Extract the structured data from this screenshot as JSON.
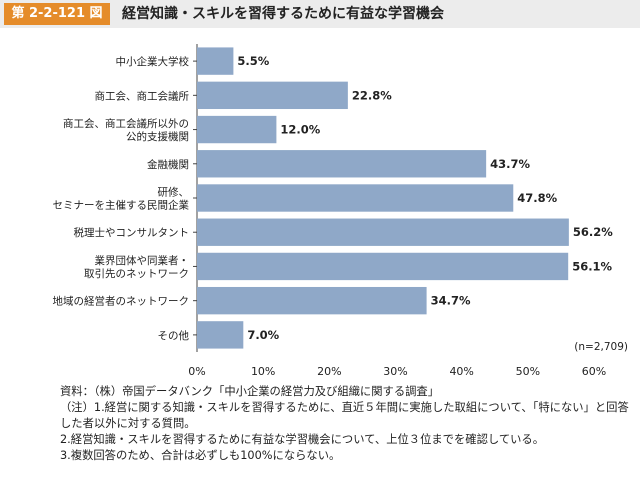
{
  "header": {
    "figure_number": "第 2-2-121 図",
    "title": "経営知識・スキルを習得するために有益な学習機会"
  },
  "chart_data": {
    "type": "bar",
    "orientation": "horizontal",
    "categories": [
      [
        "中小企業大学校"
      ],
      [
        "商工会、商工会議所"
      ],
      [
        "商工会、商工会議所以外の",
        "公的支援機関"
      ],
      [
        "金融機関"
      ],
      [
        "研修、",
        "セミナーを主催する民間企業"
      ],
      [
        "税理士やコンサルタント"
      ],
      [
        "業界団体や同業者・",
        "取引先のネットワーク"
      ],
      [
        "地域の経営者のネットワーク"
      ],
      [
        "その他"
      ]
    ],
    "values": [
      5.5,
      22.8,
      12.0,
      43.7,
      47.8,
      56.2,
      56.1,
      34.7,
      7.0
    ],
    "value_labels": [
      "5.5%",
      "22.8%",
      "12.0%",
      "43.7%",
      "47.8%",
      "56.2%",
      "56.1%",
      "34.7%",
      "7.0%"
    ],
    "xlim": [
      0,
      60
    ],
    "x_ticks": [
      "0%",
      "10%",
      "20%",
      "30%",
      "40%",
      "50%",
      "60%"
    ],
    "bar_color": "#8fa8c8",
    "grid": false,
    "annotation": "(n=2,709)"
  },
  "notes": {
    "source": "資料：（株）帝国データバンク「中小企業の経営力及び組織に関する調査」",
    "note1": "（注）1.経営に関する知識・スキルを習得するために、直近５年間に実施した取組について、「特にない」と回答した者以外に対する質問。",
    "note2": "2.経営知識・スキルを習得するために有益な学習機会について、上位３位までを確認している。",
    "note3": "3.複数回答のため、合計は必ずしも100%にならない。"
  },
  "colors": {
    "accent": "#e58c2a",
    "header_bg": "#ececec"
  }
}
